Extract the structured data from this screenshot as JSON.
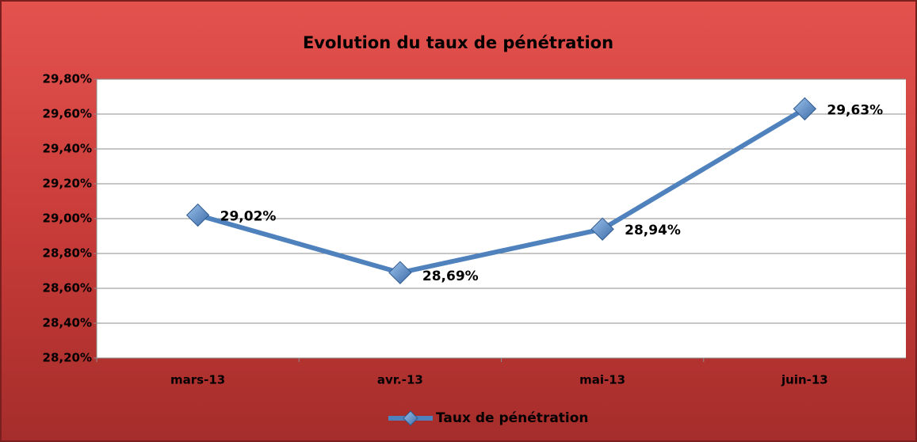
{
  "chart_data": {
    "type": "line",
    "title": "Evolution du taux de pénétration",
    "categories": [
      "mars-13",
      "avr.-13",
      "mai-13",
      "juin-13"
    ],
    "series": [
      {
        "name": "Taux de pénétration",
        "color": "#4f81bd",
        "values": [
          29.02,
          28.69,
          28.94,
          29.63
        ],
        "value_labels": [
          "29,02%",
          "28,69%",
          "28,94%",
          "29,63%"
        ]
      }
    ],
    "ylim": [
      28.2,
      29.8
    ],
    "yticks": [
      {
        "value": 28.2,
        "label": "28,20%"
      },
      {
        "value": 28.4,
        "label": "28,40%"
      },
      {
        "value": 28.6,
        "label": "28,60%"
      },
      {
        "value": 28.8,
        "label": "28,80%"
      },
      {
        "value": 29.0,
        "label": "29,00%"
      },
      {
        "value": 29.2,
        "label": "29,20%"
      },
      {
        "value": 29.4,
        "label": "29,40%"
      },
      {
        "value": 29.6,
        "label": "29,60%"
      },
      {
        "value": 29.8,
        "label": "29,80%"
      }
    ],
    "grid": true,
    "legend": "bottom"
  }
}
